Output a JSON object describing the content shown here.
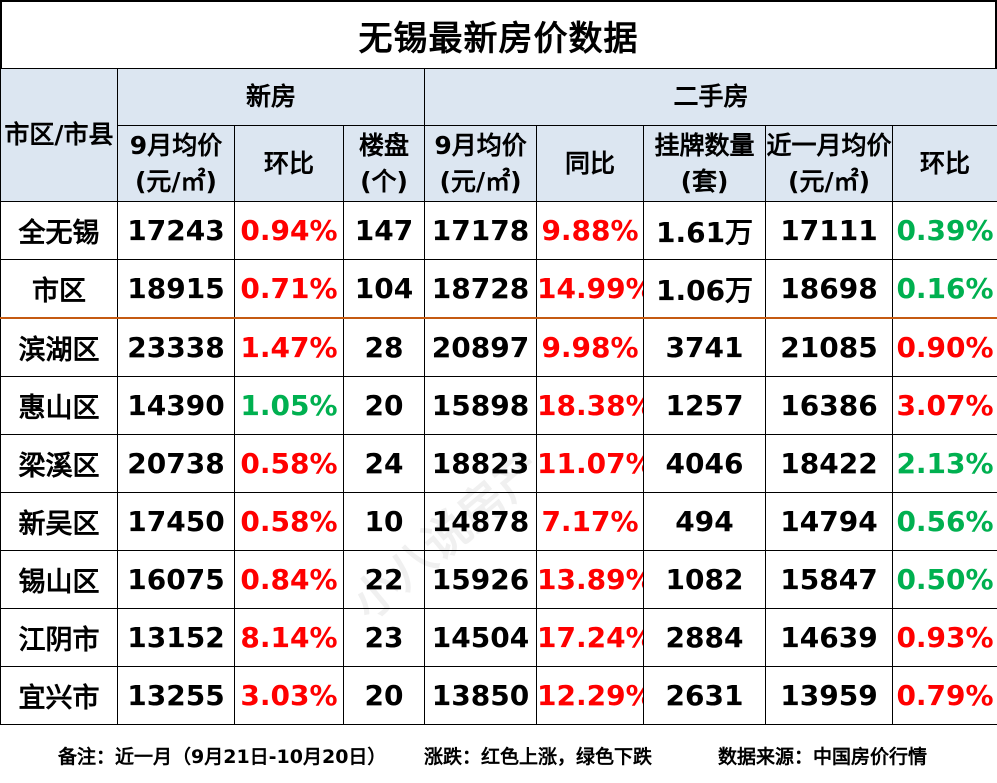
{
  "title": "无锡最新房价数据",
  "header": {
    "region_label": "市区/市县",
    "new_house": "新房",
    "second_hand": "二手房",
    "new_avg_price": "9月均价(元/㎡)",
    "new_mom": "环比",
    "new_projects": "楼盘(个)",
    "sh_avg_price": "9月均价(元/㎡)",
    "sh_yoy": "同比",
    "sh_listings": "挂牌数量(套)",
    "sh_recent_avg": "近一月均价(元/㎡)",
    "sh_mom": "环比"
  },
  "rows": [
    {
      "region": "全无锡",
      "new_price": "17243",
      "new_mom": "0.94%",
      "new_mom_dir": "up",
      "projects": "147",
      "sh_price": "17178",
      "sh_yoy": "9.88%",
      "sh_yoy_dir": "up",
      "listings": "1.61万",
      "recent": "17111",
      "sh_mom": "0.39%",
      "sh_mom_dir": "down"
    },
    {
      "region": "市区",
      "new_price": "18915",
      "new_mom": "0.71%",
      "new_mom_dir": "up",
      "projects": "104",
      "sh_price": "18728",
      "sh_yoy": "14.99%",
      "sh_yoy_dir": "up",
      "listings": "1.06万",
      "recent": "18698",
      "sh_mom": "0.16%",
      "sh_mom_dir": "down"
    },
    {
      "region": "滨湖区",
      "new_price": "23338",
      "new_mom": "1.47%",
      "new_mom_dir": "up",
      "projects": "28",
      "sh_price": "20897",
      "sh_yoy": "9.98%",
      "sh_yoy_dir": "up",
      "listings": "3741",
      "recent": "21085",
      "sh_mom": "0.90%",
      "sh_mom_dir": "up"
    },
    {
      "region": "惠山区",
      "new_price": "14390",
      "new_mom": "1.05%",
      "new_mom_dir": "down",
      "projects": "20",
      "sh_price": "15898",
      "sh_yoy": "18.38%",
      "sh_yoy_dir": "up",
      "listings": "1257",
      "recent": "16386",
      "sh_mom": "3.07%",
      "sh_mom_dir": "up"
    },
    {
      "region": "梁溪区",
      "new_price": "20738",
      "new_mom": "0.58%",
      "new_mom_dir": "up",
      "projects": "24",
      "sh_price": "18823",
      "sh_yoy": "11.07%",
      "sh_yoy_dir": "up",
      "listings": "4046",
      "recent": "18422",
      "sh_mom": "2.13%",
      "sh_mom_dir": "down"
    },
    {
      "region": "新吴区",
      "new_price": "17450",
      "new_mom": "0.58%",
      "new_mom_dir": "up",
      "projects": "10",
      "sh_price": "14878",
      "sh_yoy": "7.17%",
      "sh_yoy_dir": "up",
      "listings": "494",
      "recent": "14794",
      "sh_mom": "0.56%",
      "sh_mom_dir": "down"
    },
    {
      "region": "锡山区",
      "new_price": "16075",
      "new_mom": "0.84%",
      "new_mom_dir": "up",
      "projects": "22",
      "sh_price": "15926",
      "sh_yoy": "13.89%",
      "sh_yoy_dir": "up",
      "listings": "1082",
      "recent": "15847",
      "sh_mom": "0.50%",
      "sh_mom_dir": "down"
    },
    {
      "region": "江阴市",
      "new_price": "13152",
      "new_mom": "8.14%",
      "new_mom_dir": "up",
      "projects": "23",
      "sh_price": "14504",
      "sh_yoy": "17.24%",
      "sh_yoy_dir": "up",
      "listings": "2884",
      "recent": "14639",
      "sh_mom": "0.93%",
      "sh_mom_dir": "up"
    },
    {
      "region": "宜兴市",
      "new_price": "13255",
      "new_mom": "3.03%",
      "new_mom_dir": "up",
      "projects": "20",
      "sh_price": "13850",
      "sh_yoy": "12.29%",
      "sh_yoy_dir": "up",
      "listings": "2631",
      "recent": "13959",
      "sh_mom": "0.79%",
      "sh_mom_dir": "up"
    }
  ],
  "footer": {
    "note": "备注：近一月（9月21日-10月20日）",
    "legend": "涨跌：红色上涨，绿色下跌",
    "source": "数据来源：中国房价行情"
  },
  "watermark": "小八说房产",
  "colors": {
    "up": "#ff0000",
    "down": "#00b050",
    "header_bg": "#dce6f1",
    "separator": "#c55a11"
  }
}
